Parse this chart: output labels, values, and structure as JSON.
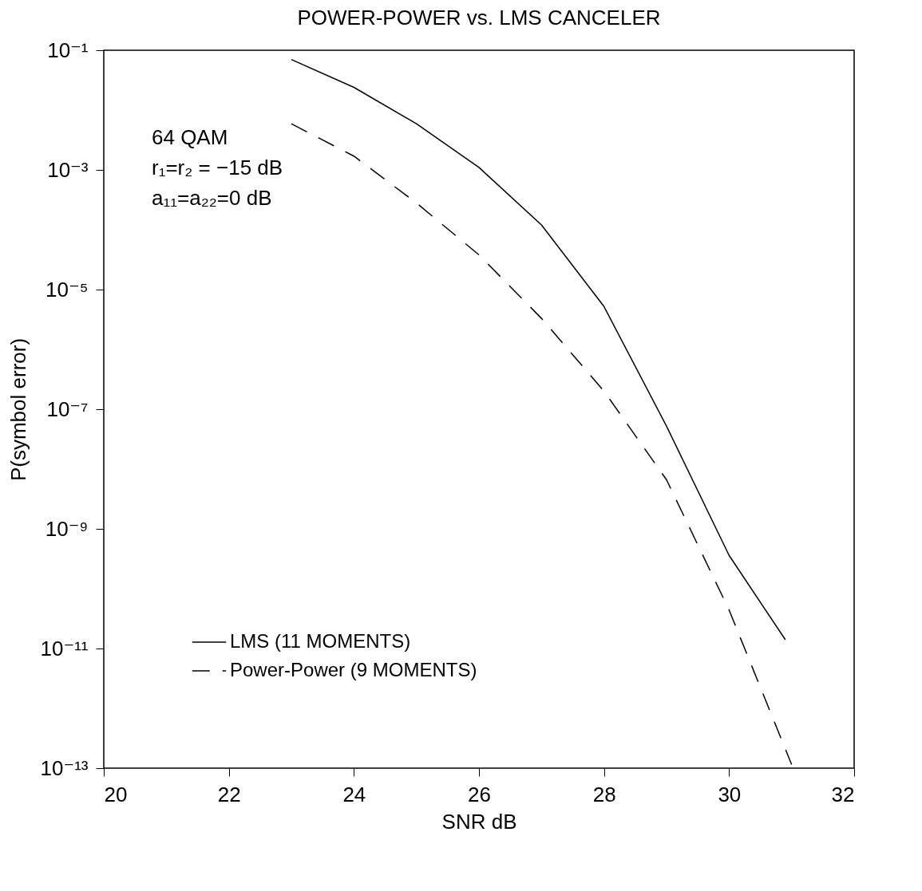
{
  "chart_data": {
    "type": "line",
    "title": "POWER-POWER vs. LMS CANCELER",
    "xlabel": "SNR   dB",
    "ylabel": "P(symbol error)",
    "log": "y",
    "xlim": [
      20,
      32
    ],
    "xticks": [
      20,
      22,
      24,
      26,
      28,
      30,
      32
    ],
    "ylim": [
      1e-13,
      0.1
    ],
    "yticks": [
      {
        "value": 0.1,
        "label": "10⁻¹"
      },
      {
        "value": 0.001,
        "label": "10⁻³"
      },
      {
        "value": 1e-05,
        "label": "10⁻⁵"
      },
      {
        "value": 1e-07,
        "label": "10⁻⁷"
      },
      {
        "value": 1e-09,
        "label": "10⁻⁹"
      },
      {
        "value": 1e-11,
        "label": "10⁻¹¹"
      },
      {
        "value": 1e-13,
        "label": "10⁻¹³"
      }
    ],
    "grid": false,
    "legend": "bottom left",
    "marker": "none",
    "annotations": [
      "64 QAM",
      "r₁=r₂  =  −15 dB",
      "a₁₁=a₂₂=0 dB"
    ],
    "series": [
      {
        "name": "LMS (11 MOMENTS)",
        "color": "#000000",
        "line_style": "solid",
        "x": [
          23,
          24,
          25,
          26,
          27,
          28,
          29,
          30,
          30.9
        ],
        "values": [
          0.07,
          0.024,
          0.0059,
          0.0011,
          0.00012,
          5.2e-06,
          5.2e-08,
          3.6e-10,
          1.4e-11
        ]
      },
      {
        "name": "Power-Power (9 MOMENTS)",
        "color": "#000000",
        "line_style": "dashed",
        "x": [
          23,
          24,
          25,
          26,
          27,
          28,
          29,
          30,
          31
        ],
        "values": [
          0.0059,
          0.0017,
          0.00028,
          3.8e-05,
          3.3e-06,
          2e-07,
          6.6e-09,
          4.4e-11,
          1.15e-13
        ]
      }
    ]
  }
}
